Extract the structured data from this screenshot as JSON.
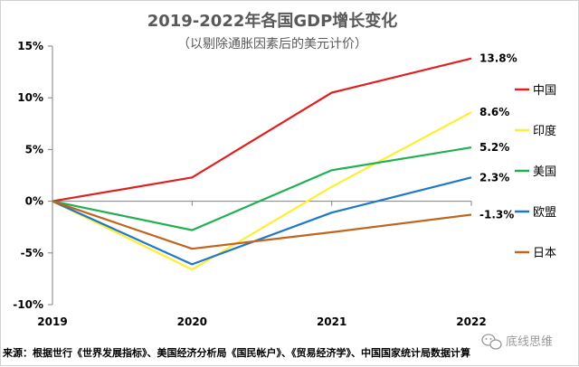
{
  "chart_data": {
    "type": "line",
    "title": "2019-2022年各国GDP增长变化",
    "subtitle": "（以剔除通胀因素后的美元计价）",
    "categories": [
      "2019",
      "2020",
      "2021",
      "2022"
    ],
    "ylim": [
      -10,
      15
    ],
    "yticks": [
      15,
      10,
      5,
      0,
      -5,
      -10
    ],
    "ytick_labels": [
      "15%",
      "10%",
      "5%",
      "0%",
      "-5%",
      "-10%"
    ],
    "grid": false,
    "legend_position": "right",
    "series": [
      {
        "name": "中国",
        "color": "#e02020",
        "values": [
          0,
          2.3,
          10.5,
          13.8
        ],
        "end_label": "13.8%"
      },
      {
        "name": "印度",
        "color": "#ffee33",
        "values": [
          0,
          -6.6,
          1.4,
          8.6
        ],
        "end_label": "8.6%"
      },
      {
        "name": "美国",
        "color": "#1fb050",
        "values": [
          0,
          -2.8,
          3.0,
          5.2
        ],
        "end_label": "5.2%"
      },
      {
        "name": "欧盟",
        "color": "#1f77c8",
        "values": [
          0,
          -6.1,
          -1.1,
          2.3
        ],
        "end_label": "2.3%"
      },
      {
        "name": "日本",
        "color": "#c0651f",
        "values": [
          0,
          -4.6,
          -3.0,
          -1.3
        ],
        "end_label": "-1.3%"
      }
    ],
    "source": "来源：根据世行《世界发展指标》、美国经济分析局《国民帐户》、《贸易经济学》、中国国家统计局数据计算"
  },
  "watermark": {
    "icon": "wechat-icon",
    "text": "底线思维"
  },
  "colors": {
    "axis": "#808080",
    "title": "#595959"
  }
}
